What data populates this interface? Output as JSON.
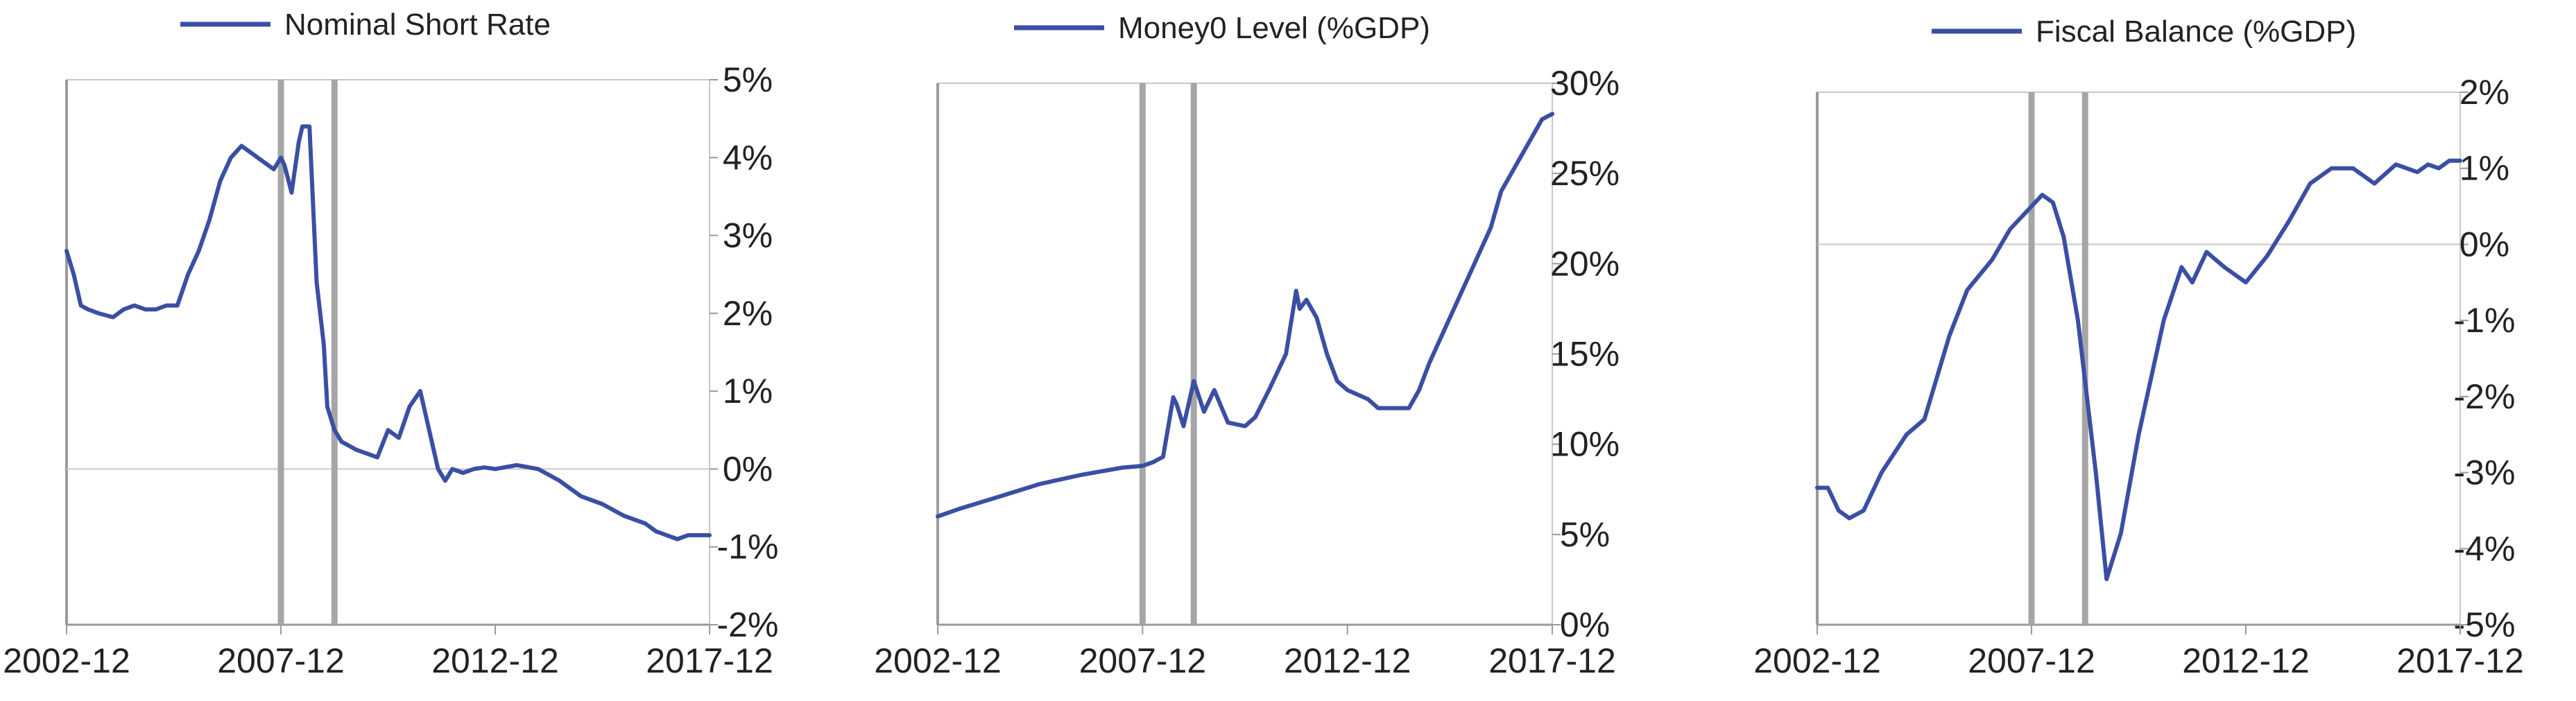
{
  "charts": [
    {
      "type": "line",
      "title": "",
      "legend": [
        "Nominal Short Rate"
      ],
      "legend_position": "top",
      "x_ticks": [
        "2002-12",
        "2007-12",
        "2012-12",
        "2017-12"
      ],
      "y_ticks": [
        "5%",
        "4%",
        "3%",
        "2%",
        "1%",
        "0%",
        "-1%",
        "-2%"
      ],
      "ylim": [
        -2,
        5
      ],
      "y_unit": "%",
      "xlim": [
        "2002-12",
        "2017-12"
      ],
      "shaded_vertical_lines": [
        "2007-12",
        "2009-03"
      ],
      "zero_line": true,
      "series": [
        {
          "name": "Nominal Short Rate",
          "color": "#3a4fa3",
          "x": [
            "2002-12",
            "2003-02",
            "2003-04",
            "2003-06",
            "2003-09",
            "2004-01",
            "2004-04",
            "2004-07",
            "2004-10",
            "2005-01",
            "2005-04",
            "2005-07",
            "2005-10",
            "2006-01",
            "2006-04",
            "2006-07",
            "2006-10",
            "2007-01",
            "2007-04",
            "2007-07",
            "2007-10",
            "2007-12",
            "2008-01",
            "2008-03",
            "2008-05",
            "2008-06",
            "2008-08",
            "2008-10",
            "2008-12",
            "2009-01",
            "2009-03",
            "2009-05",
            "2009-07",
            "2009-09",
            "2009-12",
            "2010-03",
            "2010-06",
            "2010-09",
            "2010-12",
            "2011-03",
            "2011-06",
            "2011-08",
            "2011-10",
            "2011-12",
            "2012-03",
            "2012-06",
            "2012-09",
            "2012-12",
            "2013-06",
            "2013-12",
            "2014-06",
            "2014-12",
            "2015-06",
            "2015-12",
            "2016-06",
            "2016-09",
            "2016-12",
            "2017-03",
            "2017-06",
            "2017-09",
            "2017-12"
          ],
          "values": [
            2.8,
            2.5,
            2.1,
            2.05,
            2.0,
            1.95,
            2.05,
            2.1,
            2.05,
            2.05,
            2.1,
            2.1,
            2.5,
            2.8,
            3.2,
            3.7,
            4.0,
            4.15,
            4.05,
            3.95,
            3.85,
            4.0,
            3.9,
            3.55,
            4.2,
            4.4,
            4.4,
            2.4,
            1.6,
            0.8,
            0.5,
            0.35,
            0.3,
            0.25,
            0.2,
            0.15,
            0.5,
            0.4,
            0.8,
            1.0,
            0.4,
            0.0,
            -0.15,
            0.0,
            -0.05,
            0.0,
            0.02,
            0.0,
            0.05,
            0.0,
            -0.15,
            -0.35,
            -0.45,
            -0.6,
            -0.7,
            -0.8,
            -0.85,
            -0.9,
            -0.85,
            -0.85,
            -0.85
          ]
        }
      ]
    },
    {
      "type": "line",
      "title": "",
      "legend": [
        "Money0 Level (%GDP)"
      ],
      "legend_position": "top",
      "x_ticks": [
        "2002-12",
        "2007-12",
        "2012-12",
        "2017-12"
      ],
      "y_ticks": [
        "30%",
        "25%",
        "20%",
        "15%",
        "10%",
        "5%",
        "0%"
      ],
      "ylim": [
        0,
        30
      ],
      "y_unit": "%",
      "xlim": [
        "2002-12",
        "2017-12"
      ],
      "shaded_vertical_lines": [
        "2007-12",
        "2009-03"
      ],
      "zero_line": false,
      "series": [
        {
          "name": "Money0 Level (%GDP)",
          "color": "#3a4fa3",
          "x": [
            "2002-12",
            "2003-06",
            "2004-06",
            "2005-06",
            "2006-06",
            "2007-06",
            "2007-12",
            "2008-03",
            "2008-06",
            "2008-09",
            "2008-10",
            "2008-12",
            "2009-03",
            "2009-06",
            "2009-09",
            "2010-01",
            "2010-06",
            "2010-09",
            "2011-01",
            "2011-06",
            "2011-09",
            "2011-10",
            "2011-12",
            "2012-03",
            "2012-06",
            "2012-09",
            "2012-12",
            "2013-06",
            "2013-09",
            "2014-01",
            "2014-06",
            "2014-09",
            "2014-12",
            "2015-06",
            "2015-12",
            "2016-06",
            "2016-09",
            "2016-12",
            "2017-03",
            "2017-06",
            "2017-09",
            "2017-12"
          ],
          "values": [
            6.0,
            6.4,
            7.1,
            7.8,
            8.3,
            8.7,
            8.8,
            9.0,
            9.3,
            12.6,
            12.2,
            11.0,
            13.5,
            11.8,
            13.0,
            11.2,
            11.0,
            11.5,
            13.0,
            15.0,
            18.5,
            17.5,
            18.0,
            17.0,
            15.0,
            13.5,
            13.0,
            12.5,
            12.0,
            12.0,
            12.0,
            13.0,
            14.5,
            17.0,
            19.5,
            22.0,
            24.0,
            25.0,
            26.0,
            27.0,
            28.0,
            28.3
          ]
        }
      ]
    },
    {
      "type": "line",
      "title": "",
      "legend": [
        "Fiscal Balance (%GDP)"
      ],
      "legend_position": "top",
      "x_ticks": [
        "2002-12",
        "2007-12",
        "2012-12",
        "2017-12"
      ],
      "y_ticks": [
        "2%",
        "1%",
        "0%",
        "-1%",
        "-2%",
        "-3%",
        "-4%",
        "-5%"
      ],
      "ylim": [
        -5,
        2
      ],
      "y_unit": "%",
      "xlim": [
        "2002-12",
        "2017-12"
      ],
      "shaded_vertical_lines": [
        "2007-12",
        "2009-03"
      ],
      "zero_line": true,
      "series": [
        {
          "name": "Fiscal Balance (%GDP)",
          "color": "#3a4fa3",
          "x": [
            "2002-12",
            "2003-03",
            "2003-06",
            "2003-09",
            "2004-01",
            "2004-06",
            "2005-01",
            "2005-06",
            "2006-01",
            "2006-06",
            "2007-01",
            "2007-06",
            "2007-12",
            "2008-03",
            "2008-06",
            "2008-09",
            "2009-01",
            "2009-06",
            "2009-09",
            "2010-01",
            "2010-06",
            "2011-01",
            "2011-06",
            "2011-09",
            "2012-01",
            "2012-06",
            "2012-12",
            "2013-06",
            "2013-12",
            "2014-06",
            "2014-12",
            "2015-06",
            "2015-12",
            "2016-06",
            "2016-09",
            "2016-12",
            "2017-03",
            "2017-06",
            "2017-09",
            "2017-12"
          ],
          "values": [
            -3.2,
            -3.2,
            -3.5,
            -3.6,
            -3.5,
            -3.0,
            -2.5,
            -2.3,
            -1.2,
            -0.6,
            -0.2,
            0.2,
            0.5,
            0.65,
            0.55,
            0.1,
            -1.0,
            -3.0,
            -4.4,
            -3.8,
            -2.5,
            -1.0,
            -0.3,
            -0.5,
            -0.1,
            -0.3,
            -0.5,
            -0.15,
            0.3,
            0.8,
            1.0,
            1.0,
            0.8,
            1.05,
            1.0,
            0.95,
            1.05,
            1.0,
            1.1,
            1.1
          ]
        }
      ]
    }
  ]
}
